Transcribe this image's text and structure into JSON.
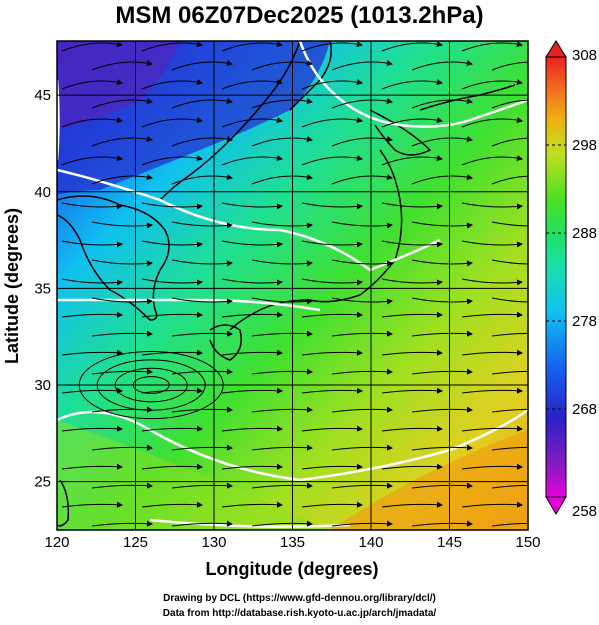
{
  "title": "MSM 06Z07Dec2025 (1013.2hPa)",
  "map": {
    "lon_range": [
      120,
      150
    ],
    "lat_range": [
      22.5,
      47.8
    ],
    "lon_ticks": [
      "120",
      "125",
      "130",
      "135",
      "140",
      "145",
      "150"
    ],
    "lon_tick_values": [
      120,
      125,
      130,
      135,
      140,
      145,
      150
    ],
    "lat_ticks": [
      "25",
      "30",
      "35",
      "40",
      "45"
    ],
    "lat_tick_values": [
      25,
      30,
      35,
      40,
      45
    ],
    "xlabel": "Longitude (degrees)",
    "ylabel": "Latitude  (degrees)",
    "field": "air temperature (K) shaded with streamlines of wind",
    "colorbar": {
      "ticks": [
        "258",
        "268",
        "278",
        "288",
        "298",
        "308"
      ],
      "tick_values": [
        258,
        268,
        278,
        288,
        298,
        308
      ],
      "colors": [
        "#e800e0",
        "#6a1ab8",
        "#2a2ad0",
        "#1466f0",
        "#10b0f0",
        "#18e0d0",
        "#20e080",
        "#30e030",
        "#90e020",
        "#e0e020",
        "#f0a010",
        "#f06020",
        "#e82020"
      ]
    },
    "contour_color": "#ffffff",
    "coastline_color": "#000000",
    "grid_color": "#000000"
  },
  "credits": {
    "line1": "Drawing by DCL (https://www.gfd-dennou.org/library/dcl/)",
    "line2": "Data from http://database.rish.kyoto-u.ac.jp/arch/jmadata/"
  }
}
